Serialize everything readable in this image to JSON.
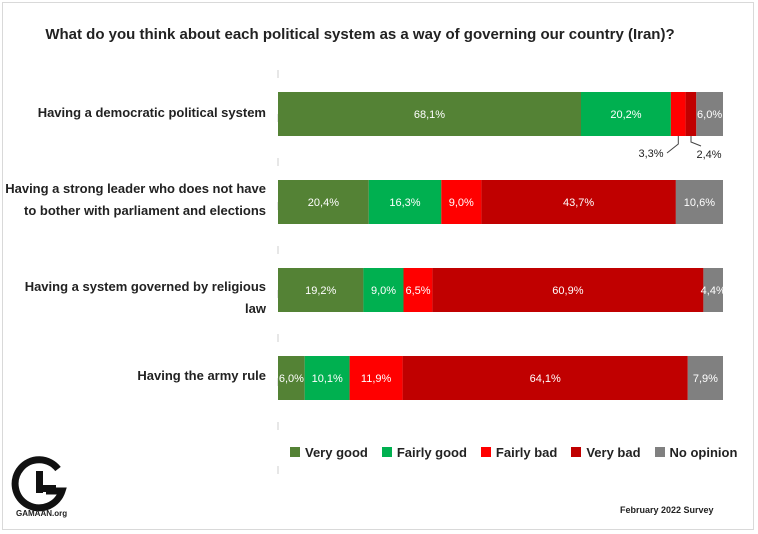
{
  "chart_data": {
    "type": "bar",
    "orientation": "horizontal",
    "stacked": true,
    "title": "What do you think about each political system as a way of governing our country (Iran)?",
    "categories": [
      "Having a democratic political system",
      "Having a strong leader who does not have to bother with parliament and elections",
      "Having a system governed by religious law",
      "Having the army rule"
    ],
    "series": [
      {
        "name": "Very good",
        "color": "#548235",
        "values": [
          68.1,
          20.4,
          19.2,
          6.0
        ],
        "labels": [
          "68,1%",
          "20,4%",
          "19,2%",
          "6,0%"
        ]
      },
      {
        "name": "Fairly good",
        "color": "#00b050",
        "values": [
          20.2,
          16.3,
          9.0,
          10.1
        ],
        "labels": [
          "20,2%",
          "16,3%",
          "9,0%",
          "10,1%"
        ]
      },
      {
        "name": "Fairly bad",
        "color": "#ff0000",
        "values": [
          3.3,
          9.0,
          6.5,
          11.9
        ],
        "labels": [
          "3,3%",
          "9,0%",
          "6,5%",
          "11,9%"
        ]
      },
      {
        "name": "Very bad",
        "color": "#c00000",
        "values": [
          2.4,
          43.7,
          60.9,
          64.1
        ],
        "labels": [
          "2,4%",
          "43,7%",
          "60,9%",
          "64,1%"
        ]
      },
      {
        "name": "No opinion",
        "color": "#808080",
        "values": [
          6.0,
          10.6,
          4.4,
          7.9
        ],
        "labels": [
          "6,0%",
          "10,6%",
          "4,4%",
          "7,9%"
        ]
      }
    ],
    "xlim": [
      0,
      100
    ],
    "legend_position": "bottom"
  },
  "logo": {
    "text": "GAMAAN.org"
  },
  "footer": {
    "survey": "February 2022 Survey"
  }
}
